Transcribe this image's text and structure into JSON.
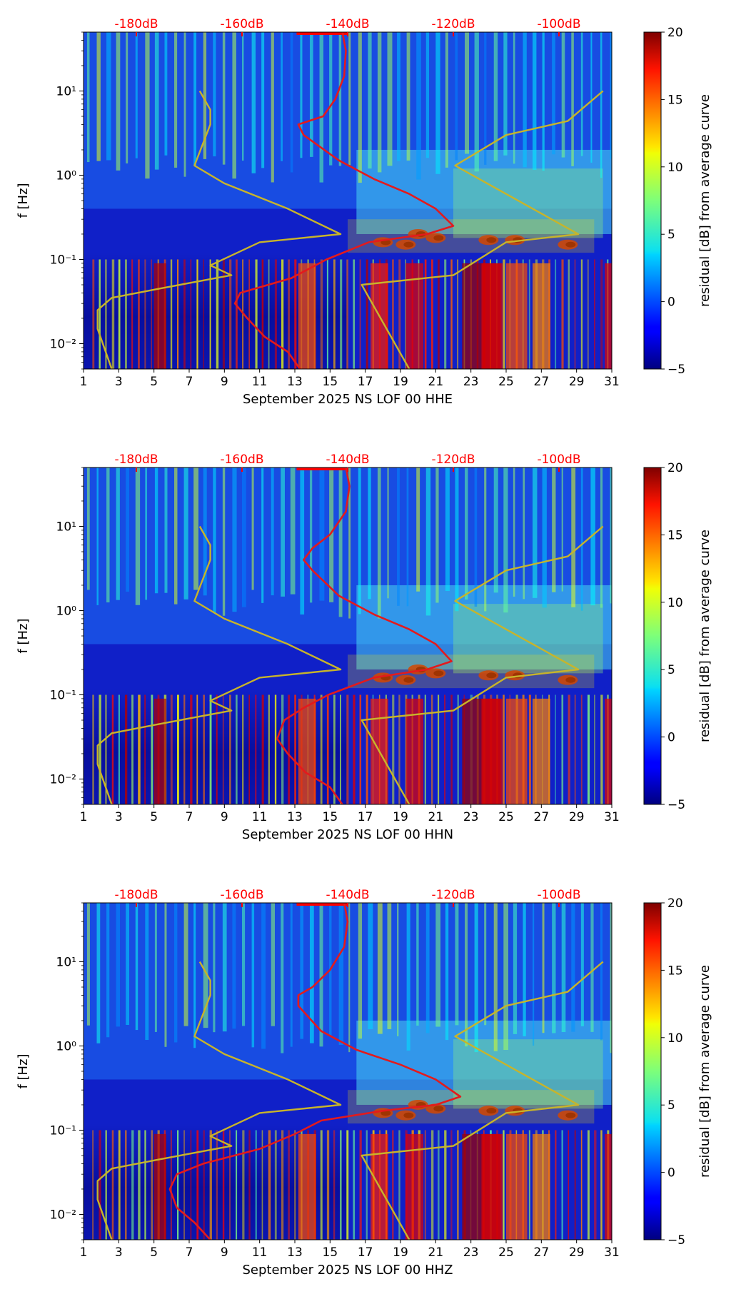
{
  "figure": {
    "colorbar": {
      "label": "residual [dB] from average curve",
      "ticks": [
        "20",
        "15",
        "10",
        "5",
        "0",
        "−5"
      ],
      "range": [
        -5,
        20
      ],
      "colormap": "jet"
    },
    "colors": {
      "psd_curve": "#e41a1c",
      "noise_model": "#c8b42a",
      "top_axis_text": "#ff0000"
    }
  },
  "chart_data": [
    {
      "type": "heatmap",
      "title": "",
      "xlabel": "September 2025 NS LOF 00 HHE",
      "ylabel": "f [Hz]",
      "x_ticks": [
        "1",
        "3",
        "5",
        "7",
        "9",
        "11",
        "13",
        "15",
        "17",
        "19",
        "21",
        "23",
        "25",
        "27",
        "29",
        "31"
      ],
      "y_ticks": [
        "10⁻²",
        "10⁻¹",
        "10⁰",
        "10¹"
      ],
      "top_ticks": [
        "-180dB",
        "-160dB",
        "-140dB",
        "-120dB",
        "-100dB"
      ],
      "x_range": [
        1,
        31
      ],
      "y_range_hz": [
        0.005,
        50
      ],
      "psd_curve": [
        [
          13.3,
          0.005
        ],
        [
          12.6,
          0.008
        ],
        [
          11.3,
          0.012
        ],
        [
          10.3,
          0.02
        ],
        [
          9.6,
          0.03
        ],
        [
          9.9,
          0.04
        ],
        [
          12.8,
          0.06
        ],
        [
          14.8,
          0.1
        ],
        [
          17.2,
          0.16
        ],
        [
          20.5,
          0.2
        ],
        [
          22.0,
          0.25
        ],
        [
          21.0,
          0.4
        ],
        [
          19.5,
          0.6
        ],
        [
          17.5,
          0.9
        ],
        [
          15.5,
          1.5
        ],
        [
          13.5,
          3.0
        ],
        [
          13.2,
          4.0
        ],
        [
          14.6,
          5.0
        ],
        [
          15.3,
          8.0
        ],
        [
          15.8,
          15
        ],
        [
          15.9,
          30
        ],
        [
          15.7,
          50
        ]
      ],
      "noise_model": [
        [
          2.6,
          0.005
        ],
        [
          1.8,
          0.015
        ],
        [
          1.8,
          0.025
        ],
        [
          2.6,
          0.035
        ],
        [
          5.3,
          0.045
        ],
        [
          9.4,
          0.065
        ],
        [
          8.2,
          0.085
        ],
        [
          11.0,
          0.16
        ],
        [
          15.6,
          0.2
        ],
        [
          12.6,
          0.4
        ],
        [
          9.0,
          0.8
        ],
        [
          7.3,
          1.3
        ],
        [
          8.2,
          4.0
        ],
        [
          8.2,
          6.0
        ],
        [
          7.6,
          10
        ],
        [
          19.5,
          0.005
        ],
        [
          16.8,
          0.05
        ],
        [
          22.0,
          0.065
        ],
        [
          25.0,
          0.16
        ],
        [
          29.1,
          0.2
        ],
        [
          22.1,
          1.3
        ],
        [
          25.0,
          3.0
        ],
        [
          28.5,
          4.4
        ],
        [
          30.5,
          10
        ]
      ]
    },
    {
      "type": "heatmap",
      "title": "",
      "xlabel": "September 2025 NS LOF 00 HHN",
      "ylabel": "f [Hz]",
      "x_ticks": [
        "1",
        "3",
        "5",
        "7",
        "9",
        "11",
        "13",
        "15",
        "17",
        "19",
        "21",
        "23",
        "25",
        "27",
        "29",
        "31"
      ],
      "y_ticks": [
        "10⁻²",
        "10⁻¹",
        "10⁰",
        "10¹"
      ],
      "top_ticks": [
        "-180dB",
        "-160dB",
        "-140dB",
        "-120dB",
        "-100dB"
      ],
      "x_range": [
        1,
        31
      ],
      "y_range_hz": [
        0.005,
        50
      ],
      "psd_curve": [
        [
          15.7,
          0.005
        ],
        [
          15.0,
          0.008
        ],
        [
          13.6,
          0.012
        ],
        [
          12.6,
          0.02
        ],
        [
          12.0,
          0.03
        ],
        [
          12.4,
          0.05
        ],
        [
          13.5,
          0.07
        ],
        [
          14.9,
          0.1
        ],
        [
          17.5,
          0.16
        ],
        [
          20.5,
          0.2
        ],
        [
          21.9,
          0.25
        ],
        [
          21.0,
          0.4
        ],
        [
          19.5,
          0.6
        ],
        [
          17.5,
          0.9
        ],
        [
          15.5,
          1.5
        ],
        [
          14.0,
          3.0
        ],
        [
          13.5,
          4.0
        ],
        [
          14.0,
          5.5
        ],
        [
          15.0,
          8.0
        ],
        [
          15.9,
          15
        ],
        [
          16.1,
          30
        ],
        [
          15.9,
          50
        ]
      ],
      "noise_model": [
        [
          2.6,
          0.005
        ],
        [
          1.8,
          0.015
        ],
        [
          1.8,
          0.025
        ],
        [
          2.6,
          0.035
        ],
        [
          5.3,
          0.045
        ],
        [
          9.4,
          0.065
        ],
        [
          8.2,
          0.085
        ],
        [
          11.0,
          0.16
        ],
        [
          15.6,
          0.2
        ],
        [
          12.6,
          0.4
        ],
        [
          9.0,
          0.8
        ],
        [
          7.3,
          1.3
        ],
        [
          8.2,
          4.0
        ],
        [
          8.2,
          6.0
        ],
        [
          7.6,
          10
        ],
        [
          19.5,
          0.005
        ],
        [
          16.8,
          0.05
        ],
        [
          22.0,
          0.065
        ],
        [
          25.0,
          0.16
        ],
        [
          29.1,
          0.2
        ],
        [
          22.1,
          1.3
        ],
        [
          25.0,
          3.0
        ],
        [
          28.5,
          4.4
        ],
        [
          30.5,
          10
        ]
      ]
    },
    {
      "type": "heatmap",
      "title": "",
      "xlabel": "September 2025 NS LOF 00 HHZ",
      "ylabel": "f [Hz]",
      "x_ticks": [
        "1",
        "3",
        "5",
        "7",
        "9",
        "11",
        "13",
        "15",
        "17",
        "19",
        "21",
        "23",
        "25",
        "27",
        "29",
        "31"
      ],
      "y_ticks": [
        "10⁻²",
        "10⁻¹",
        "10⁰",
        "10¹"
      ],
      "top_ticks": [
        "-180dB",
        "-160dB",
        "-140dB",
        "-120dB",
        "-100dB"
      ],
      "x_range": [
        1,
        31
      ],
      "y_range_hz": [
        0.005,
        50
      ],
      "psd_curve": [
        [
          8.2,
          0.005
        ],
        [
          7.3,
          0.008
        ],
        [
          6.3,
          0.012
        ],
        [
          5.9,
          0.02
        ],
        [
          6.3,
          0.03
        ],
        [
          7.8,
          0.04
        ],
        [
          11.0,
          0.06
        ],
        [
          13.0,
          0.09
        ],
        [
          14.5,
          0.13
        ],
        [
          18.0,
          0.17
        ],
        [
          21.0,
          0.2
        ],
        [
          22.4,
          0.25
        ],
        [
          21.0,
          0.4
        ],
        [
          19.0,
          0.6
        ],
        [
          16.5,
          0.9
        ],
        [
          14.5,
          1.5
        ],
        [
          13.2,
          3.0
        ],
        [
          13.2,
          4.0
        ],
        [
          14.0,
          5.0
        ],
        [
          15.0,
          8.0
        ],
        [
          15.8,
          15
        ],
        [
          16.0,
          30
        ],
        [
          15.8,
          50
        ]
      ],
      "noise_model": [
        [
          2.6,
          0.005
        ],
        [
          1.8,
          0.015
        ],
        [
          1.8,
          0.025
        ],
        [
          2.6,
          0.035
        ],
        [
          5.3,
          0.045
        ],
        [
          9.4,
          0.065
        ],
        [
          8.2,
          0.085
        ],
        [
          11.0,
          0.16
        ],
        [
          15.6,
          0.2
        ],
        [
          12.6,
          0.4
        ],
        [
          9.0,
          0.8
        ],
        [
          7.3,
          1.3
        ],
        [
          8.2,
          4.0
        ],
        [
          8.2,
          6.0
        ],
        [
          7.6,
          10
        ],
        [
          19.5,
          0.005
        ],
        [
          16.8,
          0.05
        ],
        [
          22.0,
          0.065
        ],
        [
          25.0,
          0.16
        ],
        [
          29.1,
          0.2
        ],
        [
          22.1,
          1.3
        ],
        [
          25.0,
          3.0
        ],
        [
          28.5,
          4.4
        ],
        [
          30.5,
          10
        ]
      ]
    }
  ]
}
